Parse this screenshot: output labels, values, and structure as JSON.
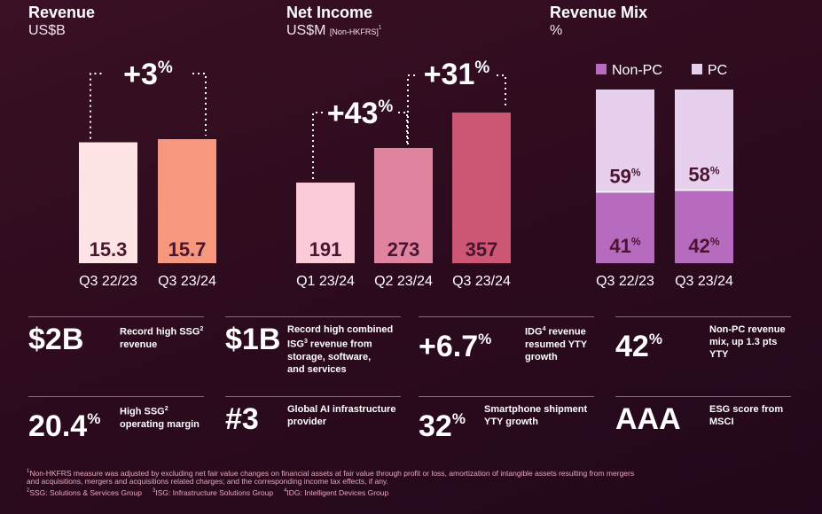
{
  "chart_data": [
    {
      "type": "bar",
      "title": "Revenue",
      "ylabel": "US$B",
      "categories": [
        "Q3 22/23",
        "Q3 23/24"
      ],
      "values": [
        15.3,
        15.7
      ],
      "value_labels": [
        "15.3",
        "15.7"
      ],
      "colors": [
        "#ffe4e6",
        "#f7977d"
      ],
      "annotation": {
        "text": "+3",
        "suffix": "%",
        "from": 0,
        "to": 1
      }
    },
    {
      "type": "bar",
      "title": "Net Income",
      "ylabel": "US$M",
      "ylabel_note": "[Non-HKFRS]",
      "ylabel_note_sup": "1",
      "categories": [
        "Q1 23/24",
        "Q2 23/24",
        "Q3 23/24"
      ],
      "values": [
        191,
        273,
        357
      ],
      "value_labels": [
        "191",
        "273",
        "357"
      ],
      "colors": [
        "#fccbd8",
        "#e084a0",
        "#cc5673"
      ],
      "annotations": [
        {
          "text": "+43",
          "suffix": "%",
          "from": 0,
          "to": 1
        },
        {
          "text": "+31",
          "suffix": "%",
          "from": 1,
          "to": 2
        }
      ]
    },
    {
      "type": "bar",
      "stacked": true,
      "title": "Revenue Mix",
      "ylabel": "%",
      "categories": [
        "Q3 22/23",
        "Q3 23/24"
      ],
      "series": [
        {
          "name": "Non-PC",
          "values": [
            41,
            42
          ],
          "value_labels": [
            "41",
            "42"
          ],
          "color": "#b66bbf"
        },
        {
          "name": "PC",
          "values": [
            59,
            58
          ],
          "value_labels": [
            "59",
            "58"
          ],
          "color": "#e7d0ee"
        }
      ],
      "pct_suffix": "%",
      "ylim": [
        0,
        100
      ]
    }
  ],
  "stats": [
    {
      "big": "$2B",
      "big_sup": "",
      "desc_lines": [
        {
          "text": "Record high SSG",
          "sup": "2"
        },
        {
          "text": "revenue",
          "sup": ""
        }
      ]
    },
    {
      "big": "$1B",
      "big_sup": "",
      "desc_lines": [
        {
          "text": "Record high combined",
          "sup": ""
        },
        {
          "text": "ISG",
          "sup": "3",
          "tail": " revenue from"
        },
        {
          "text": "storage, software,",
          "sup": ""
        },
        {
          "text": "and services",
          "sup": ""
        }
      ]
    },
    {
      "big": "+6.7",
      "big_sup": "%",
      "desc_lines": [
        {
          "text": "IDG",
          "sup": "4",
          "tail": " revenue"
        },
        {
          "text": "resumed YTY",
          "sup": ""
        },
        {
          "text": "growth",
          "sup": ""
        }
      ]
    },
    {
      "big": "42",
      "big_sup": "%",
      "desc_lines": [
        {
          "text": "Non-PC revenue",
          "sup": ""
        },
        {
          "text": "mix, up 1.3 pts",
          "sup": ""
        },
        {
          "text": "YTY",
          "sup": ""
        }
      ]
    },
    {
      "big": "20.4",
      "big_sup": "%",
      "desc_lines": [
        {
          "text": "High SSG",
          "sup": "2"
        },
        {
          "text": "operating margin",
          "sup": ""
        }
      ]
    },
    {
      "big": "#3",
      "big_sup": "",
      "desc_lines": [
        {
          "text": "Global AI infrastructure",
          "sup": ""
        },
        {
          "text": "provider",
          "sup": ""
        }
      ]
    },
    {
      "big": "32",
      "big_sup": "%",
      "desc_lines": [
        {
          "text": "Smartphone shipment",
          "sup": ""
        },
        {
          "text": "YTY growth",
          "sup": ""
        }
      ]
    },
    {
      "big": "AAA",
      "big_sup": "",
      "desc_lines": [
        {
          "text": "ESG score from",
          "sup": ""
        },
        {
          "text": "MSCI",
          "sup": ""
        }
      ]
    }
  ],
  "footnotes": {
    "line1_sup": "1",
    "line1": "Non-HKFRS measure was adjusted by excluding net fair value changes on financial assets at fair value through profit or loss, amortization of intangible assets resulting from mergers",
    "line2": "and acquisitions, mergers and acquisitions related charges; and the corresponding income tax effects, if any.",
    "defs": [
      {
        "sup": "2",
        "text": "SSG: Solutions & Services Group"
      },
      {
        "sup": "3",
        "text": "ISG: Infrastructure Solutions Group"
      },
      {
        "sup": "4",
        "text": "IDG: Intelligent Devices Group"
      }
    ]
  },
  "colors": {
    "label_dark": "#4a1530",
    "bracket": "#ffffff",
    "rule": "#8a6a78"
  }
}
